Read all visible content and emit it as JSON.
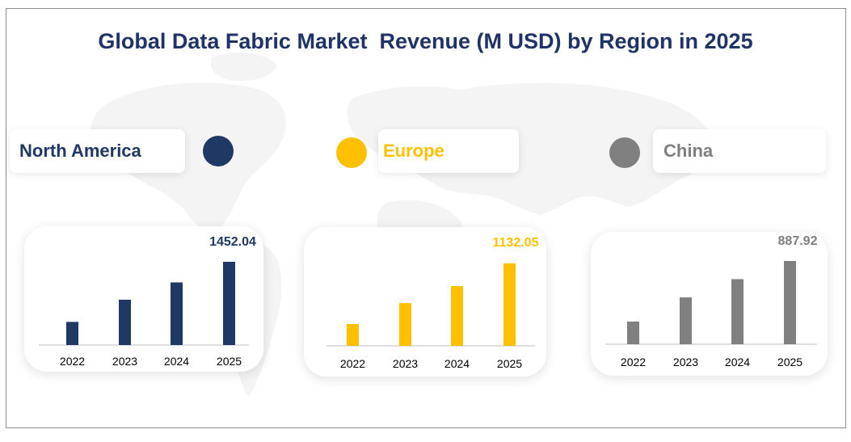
{
  "title": "Global Data Fabric Market  Revenue (M USD) by Region in 2025",
  "colors": {
    "title": "#1f3366",
    "north_america": "#1f3864",
    "europe": "#ffc000",
    "china": "#808080",
    "axis": "#bfbfbf"
  },
  "chart_data": [
    {
      "type": "bar",
      "region": "North America",
      "categories": [
        "2022",
        "2023",
        "2024",
        "2025"
      ],
      "values": [
        403.55,
        790.88,
        1092.53,
        1452.04
      ],
      "value_label": "1452.04",
      "grid": false
    },
    {
      "type": "bar",
      "region": "Europe",
      "categories": [
        "2022",
        "2023",
        "2024",
        "2025"
      ],
      "values": [
        299.91,
        587.15,
        821.42,
        1132.05
      ],
      "value_label": "1132.05",
      "grid": false
    },
    {
      "type": "bar",
      "region": "China",
      "categories": [
        "2022",
        "2023",
        "2024",
        "2025"
      ],
      "values": [
        241.94,
        499.78,
        694.38,
        887.92
      ],
      "value_label": "887.92",
      "grid": false
    }
  ]
}
